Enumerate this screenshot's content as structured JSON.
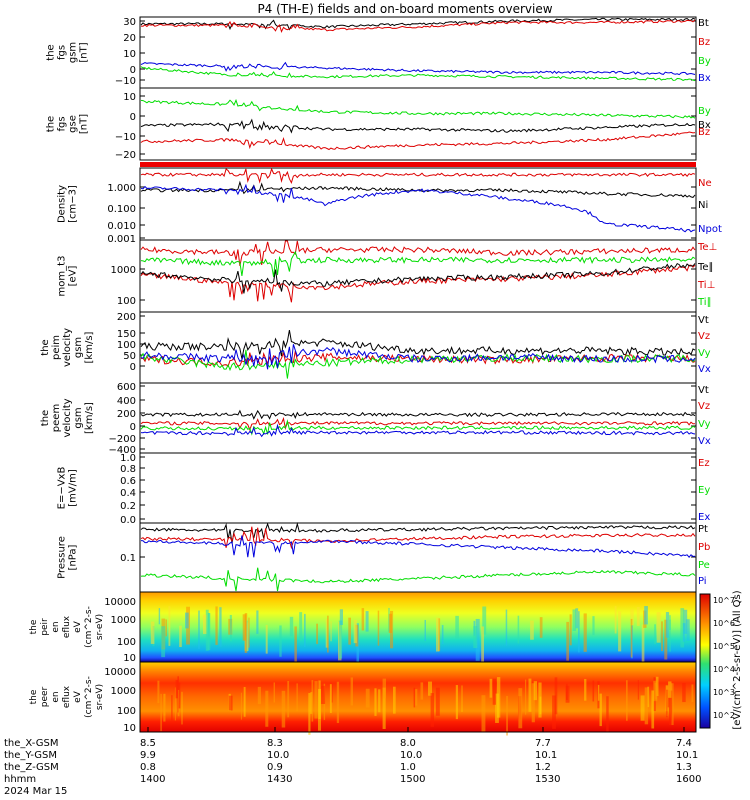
{
  "title": "P4 (TH-E) fields and on-board moments overview",
  "x_axis": {
    "hhmm": [
      "1400",
      "1430",
      "1500",
      "1530",
      "1600"
    ],
    "date_label": "2024 Mar 15",
    "row_labels": [
      "the_X-GSM",
      "the_Y-GSM",
      "the_Z-GSM",
      "hhmm"
    ],
    "rows": {
      "the_X-GSM": [
        "8.5",
        "8.3",
        "8.0",
        "7.7",
        "7.4"
      ],
      "the_Y-GSM": [
        "9.9",
        "10.0",
        "10.0",
        "10.1",
        "10.1"
      ],
      "the_Z-GSM": [
        "0.8",
        "0.9",
        "1.0",
        "1.2",
        "1.3"
      ]
    }
  },
  "colors": {
    "black": "#000000",
    "red": "#dd0000",
    "green": "#00dd00",
    "blue": "#0000dd"
  },
  "colorbar": {
    "label": "[eV/(cm^2-s-sr-eV)] (All Qs)",
    "ticks": [
      "10^2",
      "10^3",
      "10^4",
      "10^5",
      "10^6",
      "10^7"
    ]
  },
  "chart_data": [
    {
      "type": "line",
      "panel": "fgs_gsm",
      "ylabel": "the fgs gsm [nT]",
      "ylim": [
        -15,
        32
      ],
      "yticks": [
        "30",
        "20",
        "10",
        "0",
        "−10"
      ],
      "legend": [
        {
          "name": "Bt",
          "color": "#000000"
        },
        {
          "name": "Bz",
          "color": "#dd0000"
        },
        {
          "name": "By",
          "color": "#00dd00"
        },
        {
          "name": "Bx",
          "color": "#0000dd"
        }
      ],
      "x": [
        0,
        10,
        20,
        30,
        40,
        50,
        60
      ],
      "series": [
        {
          "name": "Bt",
          "values": [
            28,
            28,
            26,
            28,
            30,
            31,
            31
          ]
        },
        {
          "name": "Bz",
          "values": [
            27,
            27,
            24,
            26,
            29,
            29,
            30
          ]
        },
        {
          "name": "By",
          "values": [
            -2,
            -7,
            -8,
            -7,
            -8,
            -9,
            -10
          ]
        },
        {
          "name": "Bx",
          "values": [
            1,
            -1,
            -2,
            -4,
            -5,
            -5,
            -6
          ]
        }
      ]
    },
    {
      "type": "line",
      "panel": "fgs_gse",
      "ylabel": "the fgs gse [nT]",
      "ylim": [
        -25,
        15
      ],
      "yticks": [
        "10",
        "0",
        "−10",
        "−20"
      ],
      "legend": [
        {
          "name": "By",
          "color": "#00dd00"
        },
        {
          "name": "Bx",
          "color": "#000000"
        },
        {
          "name": "Bz",
          "color": "#dd0000"
        }
      ],
      "x": [
        0,
        10,
        20,
        30,
        40,
        50,
        60
      ],
      "series": [
        {
          "name": "By",
          "values": [
            8,
            6,
            2,
            1,
            1,
            0,
            -1
          ]
        },
        {
          "name": "Bx",
          "values": [
            -6,
            -5,
            -8,
            -8,
            -9,
            -7,
            -5
          ]
        },
        {
          "name": "Bz",
          "values": [
            -15,
            -14,
            -19,
            -17,
            -16,
            -14,
            -10
          ]
        }
      ]
    },
    {
      "type": "line",
      "panel": "density",
      "ylabel": "Density [cm−3]",
      "scale": "log",
      "ylim": [
        0.0008,
        4
      ],
      "yticks": [
        "1.000",
        "0.100",
        "0.010",
        "0.001"
      ],
      "legend": [
        {
          "name": "Ne",
          "color": "#dd0000"
        },
        {
          "name": "Ni",
          "color": "#000000"
        },
        {
          "name": "Npot",
          "color": "#0000dd"
        }
      ],
      "x": [
        0,
        10,
        20,
        30,
        40,
        50,
        60
      ],
      "series": [
        {
          "name": "Ne",
          "values": [
            2,
            2,
            2,
            2,
            2,
            2,
            2
          ]
        },
        {
          "name": "Ni",
          "values": [
            0.3,
            0.3,
            0.4,
            0.3,
            0.3,
            0.2,
            0.15
          ]
        },
        {
          "name": "Npot",
          "values": [
            0.4,
            0.3,
            0.05,
            0.3,
            0.1,
            0.005,
            0.002
          ]
        }
      ]
    },
    {
      "type": "line",
      "panel": "temperature",
      "ylabel": "mom_t3 [eV]",
      "scale": "log",
      "ylim": [
        80,
        9000
      ],
      "yticks": [
        "1000",
        "100"
      ],
      "legend": [
        {
          "name": "Te⊥",
          "color": "#dd0000"
        },
        {
          "name": "Te∥",
          "color": "#000000"
        },
        {
          "name": "Ti⊥",
          "color": "#dd0000"
        },
        {
          "name": "Ti∥",
          "color": "#00dd00"
        }
      ],
      "x": [
        0,
        10,
        20,
        30,
        40,
        50,
        60
      ],
      "series": [
        {
          "name": "Ti⊥",
          "values": [
            5000,
            4000,
            5000,
            5000,
            4000,
            4500,
            5000
          ]
        },
        {
          "name": "Ti∥",
          "values": [
            2500,
            2000,
            2500,
            2500,
            2500,
            2500,
            2500
          ]
        },
        {
          "name": "Te⊥",
          "values": [
            900,
            500,
            400,
            600,
            700,
            900,
            1500
          ]
        },
        {
          "name": "Te∥",
          "values": [
            1000,
            600,
            500,
            700,
            800,
            1000,
            1800
          ]
        }
      ]
    },
    {
      "type": "line",
      "panel": "peim_velocity",
      "ylabel": "the peim velocity gsm [km/s]",
      "ylim": [
        -110,
        220
      ],
      "yticks": [
        "200",
        "150",
        "100",
        "50",
        "0"
      ],
      "legend": [
        {
          "name": "Vt",
          "color": "#000000"
        },
        {
          "name": "Vz",
          "color": "#dd0000"
        },
        {
          "name": "Vy",
          "color": "#00dd00"
        },
        {
          "name": "Vx",
          "color": "#0000dd"
        }
      ],
      "x": [
        0,
        10,
        20,
        30,
        40,
        50,
        60
      ],
      "series": [
        {
          "name": "Vt",
          "values": [
            60,
            60,
            80,
            40,
            40,
            40,
            30
          ]
        },
        {
          "name": "Vz",
          "values": [
            0,
            -20,
            10,
            0,
            -5,
            5,
            0
          ]
        },
        {
          "name": "Vy",
          "values": [
            10,
            -40,
            -20,
            0,
            5,
            0,
            5
          ]
        },
        {
          "name": "Vx",
          "values": [
            20,
            0,
            40,
            0,
            10,
            0,
            0
          ]
        }
      ]
    },
    {
      "type": "line",
      "panel": "peem_velocity",
      "ylabel": "the peem velocity gsm [km/s]",
      "ylim": [
        -420,
        620
      ],
      "yticks": [
        "600",
        "400",
        "200",
        "0",
        "−200",
        "−400"
      ],
      "legend": [
        {
          "name": "Vt",
          "color": "#000000"
        },
        {
          "name": "Vz",
          "color": "#dd0000"
        },
        {
          "name": "Vy",
          "color": "#00dd00"
        },
        {
          "name": "Vx",
          "color": "#0000dd"
        }
      ],
      "x": [
        0,
        10,
        20,
        30,
        40,
        50,
        60
      ],
      "series": [
        {
          "name": "Vt",
          "values": [
            150,
            150,
            160,
            150,
            150,
            160,
            160
          ]
        },
        {
          "name": "Vz",
          "values": [
            20,
            20,
            20,
            20,
            20,
            20,
            20
          ]
        },
        {
          "name": "Vy",
          "values": [
            -60,
            -60,
            -50,
            -50,
            -50,
            -50,
            -50
          ]
        },
        {
          "name": "Vx",
          "values": [
            -130,
            -130,
            -120,
            -120,
            -120,
            -130,
            -130
          ]
        }
      ]
    },
    {
      "type": "line",
      "panel": "e_field",
      "ylabel": "E=−VxB [mV/m]",
      "ylim": [
        -0.05,
        1.0
      ],
      "yticks": [
        "1.0",
        "0.8",
        "0.6",
        "0.4",
        "0.2",
        "0.0"
      ],
      "legend": [
        {
          "name": "Ez",
          "color": "#dd0000"
        },
        {
          "name": "Ey",
          "color": "#00dd00"
        },
        {
          "name": "Ex",
          "color": "#0000dd"
        }
      ],
      "x": [],
      "series": []
    },
    {
      "type": "line",
      "panel": "pressure",
      "ylabel": "Pressure [nPa]",
      "scale": "log",
      "ylim": [
        0.006,
        0.9
      ],
      "yticks": [
        "0.1"
      ],
      "legend": [
        {
          "name": "Pt",
          "color": "#000000"
        },
        {
          "name": "Pb",
          "color": "#dd0000"
        },
        {
          "name": "Pe",
          "color": "#00dd00"
        },
        {
          "name": "Pi",
          "color": "#0000dd"
        }
      ],
      "x": [
        0,
        10,
        20,
        30,
        40,
        50,
        60
      ],
      "series": [
        {
          "name": "Pt",
          "values": [
            0.6,
            0.55,
            0.55,
            0.6,
            0.65,
            0.7,
            0.7
          ]
        },
        {
          "name": "Pb",
          "values": [
            0.3,
            0.28,
            0.25,
            0.3,
            0.35,
            0.38,
            0.4
          ]
        },
        {
          "name": "Pi",
          "values": [
            0.25,
            0.2,
            0.25,
            0.2,
            0.15,
            0.12,
            0.08
          ]
        },
        {
          "name": "Pe",
          "values": [
            0.02,
            0.015,
            0.012,
            0.015,
            0.02,
            0.025,
            0.02
          ]
        }
      ]
    },
    {
      "type": "heatmap",
      "panel": "peir_eflux",
      "ylabel": "the peir en eflux eV (cm^2-s-sr-eV)",
      "yticks": [
        "10000",
        "1000",
        "100",
        "10"
      ]
    },
    {
      "type": "heatmap",
      "panel": "peer_eflux",
      "ylabel": "the peer en eflux eV (cm^2-s-sr-eV)",
      "yticks": [
        "10000",
        "1000",
        "100",
        "10"
      ]
    }
  ]
}
